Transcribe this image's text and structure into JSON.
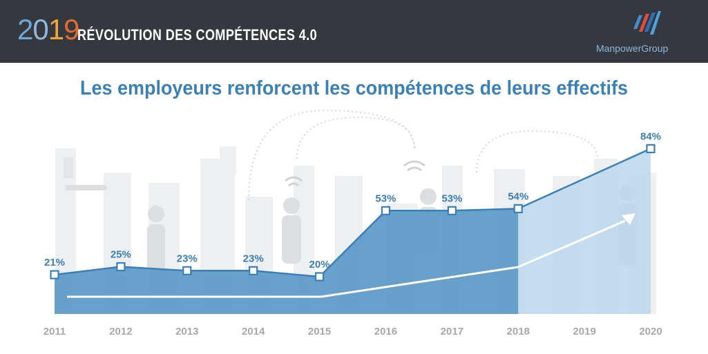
{
  "header": {
    "year": "2019",
    "title": "RÉVOLUTION DES COMPÉTENCES 4.0",
    "brand": "ManpowerGroup"
  },
  "chart_data": {
    "type": "area",
    "title": "Les employeurs renforcent les compétences de leurs effectifs",
    "categories": [
      "2011",
      "2012",
      "2013",
      "2014",
      "2015",
      "2016",
      "2017",
      "2018",
      "2019",
      "2020"
    ],
    "labeled_points": [
      {
        "x": "2011",
        "value": 21,
        "label": "21%"
      },
      {
        "x": "2012",
        "value": 25,
        "label": "25%"
      },
      {
        "x": "2013",
        "value": 23,
        "label": "23%"
      },
      {
        "x": "2014",
        "value": 23,
        "label": "23%"
      },
      {
        "x": "2015",
        "value": 20,
        "label": "20%"
      },
      {
        "x": "2016",
        "value": 53,
        "label": "53%"
      },
      {
        "x": "2017",
        "value": 53,
        "label": "53%"
      },
      {
        "x": "2018",
        "value": 54,
        "label": "54%"
      },
      {
        "x": "2020",
        "value": 84,
        "label": "84%"
      }
    ],
    "projection_from": "2018",
    "colors": {
      "actual_fill": "#5b99c7",
      "projected_fill": "#bcd6ec",
      "line": "#3a80b8",
      "trend": "#ffffff"
    }
  }
}
